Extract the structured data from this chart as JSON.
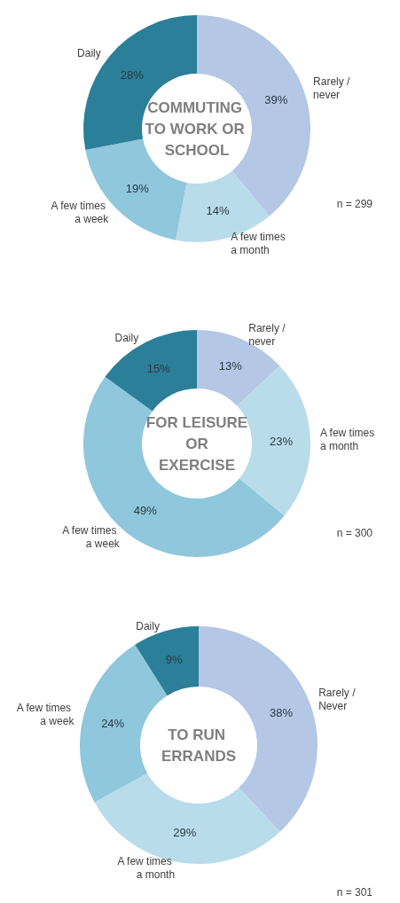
{
  "chart_data": [
    {
      "type": "donut",
      "title": "COMMUTING TO WORK OR SCHOOL",
      "categories": [
        "Rarely / never",
        "A few times a month",
        "A few times a week",
        "Daily"
      ],
      "values": [
        39,
        14,
        19,
        28
      ],
      "value_labels": [
        "39%",
        "14%",
        "19%",
        "28%"
      ],
      "colors": [
        "#b4c7e4",
        "#b9dcea",
        "#8fc7dc",
        "#2b7f99"
      ],
      "annotations": [
        "n = 299"
      ],
      "legend": false
    },
    {
      "type": "donut",
      "title": "FOR LEISURE OR EXERCISE",
      "categories": [
        "Rarely / never",
        "A few times a month",
        "A few times a week",
        "Daily"
      ],
      "values": [
        13,
        23,
        49,
        15
      ],
      "value_labels": [
        "13%",
        "23%",
        "49%",
        "15%"
      ],
      "colors": [
        "#b4c7e4",
        "#b9dcea",
        "#8fc7dc",
        "#2b7f99"
      ],
      "annotations": [
        "n = 300"
      ],
      "legend": false
    },
    {
      "type": "donut",
      "title": "TO RUN ERRANDS",
      "categories": [
        "Rarely / Never",
        "A few times a month",
        "A few times a week",
        "Daily"
      ],
      "values": [
        38,
        29,
        24,
        9
      ],
      "value_labels": [
        "38%",
        "29%",
        "24%",
        "9%"
      ],
      "colors": [
        "#b4c7e4",
        "#b9dcea",
        "#8fc7dc",
        "#2b7f99"
      ],
      "annotations": [
        "n = 301"
      ],
      "legend": false
    }
  ]
}
